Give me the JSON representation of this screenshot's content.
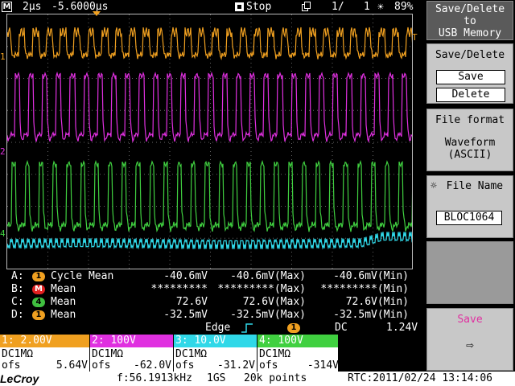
{
  "topbar": {
    "mode_icon": "M",
    "timebase": "2µs",
    "delay": "-5.6000µs",
    "run_state": "Stop",
    "page": "1/",
    "page_total": "1",
    "battery": "89%"
  },
  "markers": {
    "trigger_level": "T",
    "ch1": "1",
    "ch2": "2",
    "ch4": "4"
  },
  "measurements": [
    {
      "label": "A:",
      "badge": "1",
      "badge_color": "#f0a020",
      "name": "Cycle Mean",
      "v1": "-40.6mV",
      "v2": "-40.6mV(Max)",
      "v3": "-40.6mV(Min)"
    },
    {
      "label": "B:",
      "badge": "M",
      "badge_color": "#e02020",
      "name": "Mean",
      "v1": "*********",
      "v2": "*********(Max)",
      "v3": "*********(Min)"
    },
    {
      "label": "C:",
      "badge": "4",
      "badge_color": "#40c040",
      "name": "Mean",
      "v1": "72.6V",
      "v2": "72.6V(Max)",
      "v3": "72.6V(Min)"
    },
    {
      "label": "D:",
      "badge": "1",
      "badge_color": "#f0a020",
      "name": "Mean",
      "v1": "-32.5mV",
      "v2": "-32.5mV(Max)",
      "v3": "-32.5mV(Min)"
    }
  ],
  "trigger": {
    "type": "Edge",
    "source": "1",
    "coupling": "DC",
    "level": "1.24V"
  },
  "channels": [
    {
      "header": "1: 2.00V",
      "color": "#f0a020",
      "coupling": "DC1MΩ",
      "ofs_label": "ofs",
      "ofs": "5.64V"
    },
    {
      "header": "2:  100V",
      "color": "#e030e0",
      "coupling": "DC1MΩ",
      "ofs_label": "ofs",
      "ofs": "-62.0V"
    },
    {
      "header": "3: 10.0V",
      "color": "#30d8e8",
      "coupling": "DC1MΩ",
      "ofs_label": "ofs",
      "ofs": "-31.2V"
    },
    {
      "header": "4:  100V",
      "color": "#40d040",
      "coupling": "DC1MΩ",
      "ofs_label": "ofs",
      "ofs": "-314V"
    }
  ],
  "bottom": {
    "brand": "LeCroy",
    "frequency": "f:56.1913kHz",
    "sample_rate": "1GS",
    "points": "20k points",
    "rtc": "RTC:2011/02/24 13:14:06"
  },
  "menu": {
    "title_line1": "Save/Delete",
    "title_line2": "to",
    "title_line3": "USB Memory",
    "save_delete_label": "Save/Delete",
    "save_option": "Save",
    "delete_option": "Delete",
    "file_format_label": "File format",
    "file_format_line1": "Waveform",
    "file_format_line2": "(ASCII)",
    "file_name_label": "File Name",
    "file_name_value": "BLOC1064",
    "save_action_label": "Save"
  },
  "colors": {
    "ch1": "#f0a020",
    "ch2": "#e030e0",
    "ch3": "#30d8e8",
    "ch4": "#40d040"
  }
}
